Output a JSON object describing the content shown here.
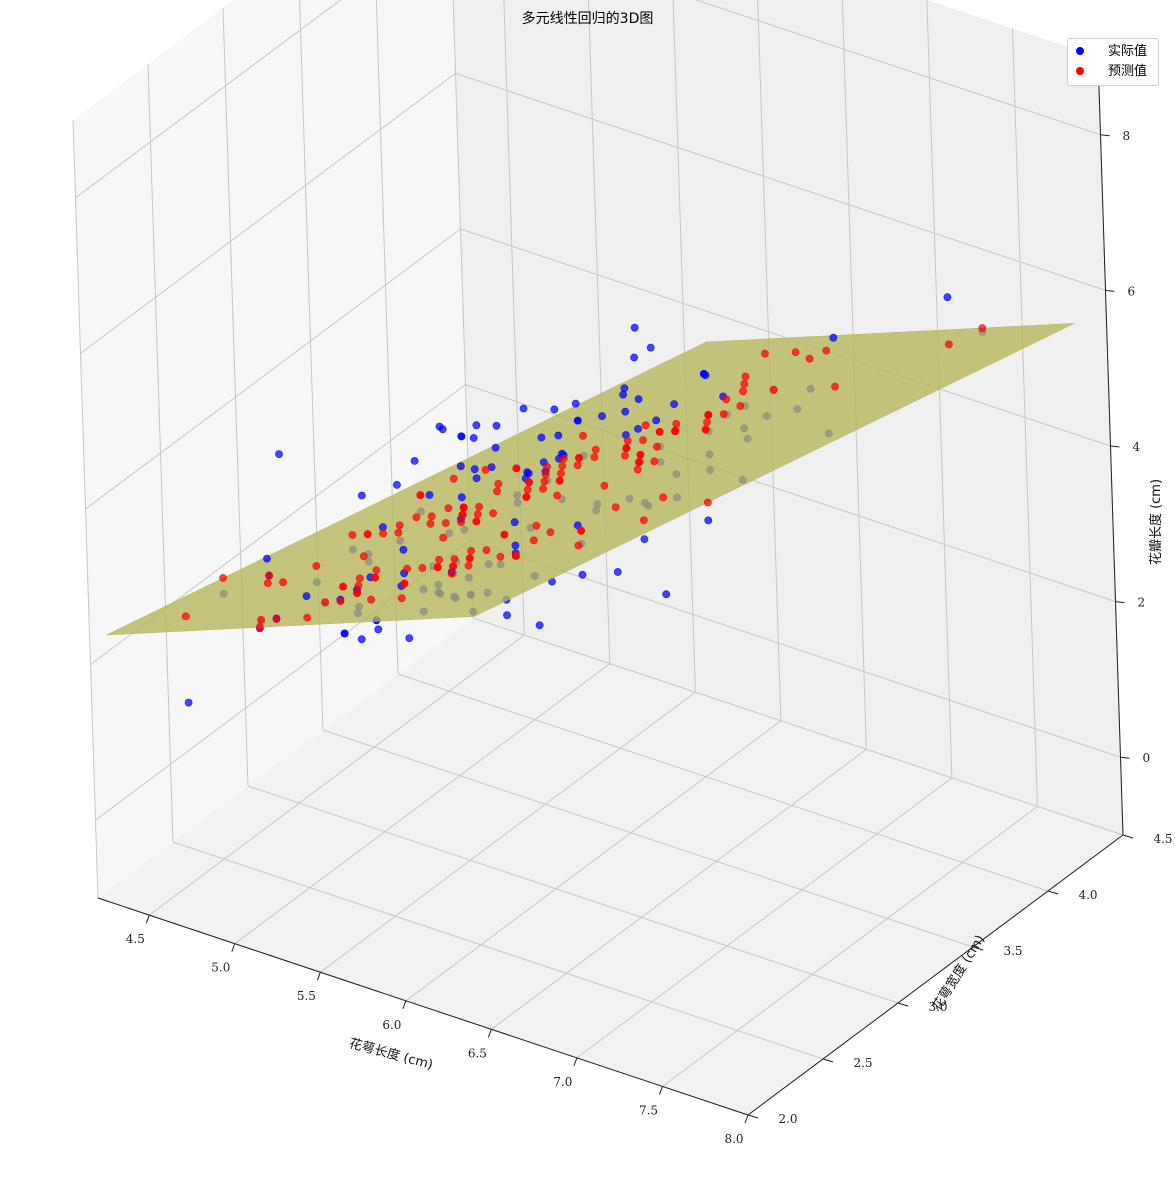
{
  "chart_data": {
    "type": "scatter",
    "subtype": "3d-scatter-with-regression-plane",
    "title": "多元线性回归的3D图",
    "xlabel": "花萼长度 (cm)",
    "ylabel": "花萼宽度 (cm)",
    "zlabel": "花瓣长度 (cm)",
    "xlim": [
      4.2,
      8.0
    ],
    "ylim": [
      2.0,
      4.5
    ],
    "zlim": [
      -1.0,
      9.0
    ],
    "xticks": [
      "4.5",
      "5.0",
      "5.5",
      "6.0",
      "6.5",
      "7.0",
      "7.5",
      "8.0"
    ],
    "yticks": [
      "2.0",
      "2.5",
      "3.0",
      "3.5",
      "4.0",
      "4.5"
    ],
    "zticks": [
      "0",
      "2",
      "4",
      "6",
      "8"
    ],
    "grid": true,
    "legend_position": "top-right",
    "plane": {
      "intercept": -2.52,
      "coef_x": 1.78,
      "coef_y": -1.34,
      "color": "#b5b55a"
    },
    "series": [
      {
        "name": "实际值",
        "color": "#0000ff",
        "x": [
          5.1,
          4.9,
          4.7,
          4.6,
          5.0,
          5.4,
          4.6,
          5.0,
          4.4,
          4.9,
          5.4,
          4.8,
          4.8,
          4.3,
          5.8,
          5.7,
          5.4,
          5.1,
          5.7,
          5.1,
          5.4,
          5.1,
          4.6,
          5.1,
          4.8,
          5.0,
          5.0,
          5.2,
          5.2,
          4.7,
          4.8,
          5.4,
          5.2,
          5.5,
          4.9,
          5.0,
          5.5,
          4.9,
          4.4,
          5.1,
          5.0,
          4.5,
          4.4,
          5.0,
          5.1,
          4.8,
          5.1,
          4.6,
          5.3,
          5.0,
          7.0,
          6.4,
          6.9,
          5.5,
          6.5,
          5.7,
          6.3,
          4.9,
          6.6,
          5.2,
          5.0,
          5.9,
          6.0,
          6.1,
          5.6,
          6.7,
          5.6,
          5.8,
          6.2,
          5.6,
          5.9,
          6.1,
          6.3,
          6.1,
          6.4,
          6.6,
          6.8,
          6.7,
          6.0,
          5.7,
          5.5,
          5.5,
          5.8,
          6.0,
          5.4,
          6.0,
          6.7,
          6.3,
          5.6,
          5.5,
          5.5,
          6.1,
          5.8,
          5.0,
          5.6,
          5.7,
          5.7,
          6.2,
          5.1,
          5.7,
          6.3,
          5.8,
          7.1,
          6.3,
          6.5,
          7.6,
          4.9,
          7.3,
          6.7,
          7.2,
          6.5,
          6.4,
          6.8,
          5.7,
          5.8,
          6.4,
          6.5,
          7.7,
          7.7,
          6.0,
          6.9,
          5.6,
          7.7,
          6.3,
          6.7,
          7.2,
          6.2,
          6.1,
          6.4,
          7.2,
          7.4,
          7.9,
          6.4,
          6.3,
          6.1,
          7.7,
          6.3,
          6.4,
          6.0,
          6.9,
          6.7,
          6.9,
          5.8,
          6.8,
          6.7,
          6.7,
          6.3,
          6.5,
          6.2,
          5.9
        ],
        "y": [
          3.5,
          3.0,
          3.2,
          3.1,
          3.6,
          3.9,
          3.4,
          3.4,
          2.9,
          3.1,
          3.7,
          3.4,
          3.0,
          3.0,
          4.0,
          4.4,
          3.9,
          3.5,
          3.8,
          3.8,
          3.4,
          3.7,
          3.6,
          3.3,
          3.4,
          3.0,
          3.4,
          3.5,
          3.4,
          3.2,
          3.1,
          3.4,
          4.1,
          4.2,
          3.1,
          3.2,
          3.5,
          3.6,
          3.0,
          3.4,
          3.5,
          2.3,
          3.2,
          3.5,
          3.8,
          3.0,
          3.8,
          3.2,
          3.7,
          3.3,
          3.2,
          3.2,
          3.1,
          2.3,
          2.8,
          2.8,
          3.3,
          2.4,
          2.9,
          2.7,
          2.0,
          3.0,
          2.2,
          2.9,
          2.9,
          3.1,
          3.0,
          2.7,
          2.2,
          2.5,
          3.2,
          2.8,
          2.5,
          2.8,
          2.9,
          3.0,
          2.8,
          3.0,
          2.9,
          2.6,
          2.4,
          2.4,
          2.7,
          2.7,
          3.0,
          3.4,
          3.1,
          2.3,
          3.0,
          2.5,
          2.6,
          3.0,
          2.6,
          2.3,
          2.7,
          3.0,
          2.9,
          2.9,
          2.5,
          2.8,
          3.3,
          2.7,
          3.0,
          2.9,
          3.0,
          3.0,
          2.5,
          2.9,
          2.5,
          3.6,
          3.2,
          2.7,
          3.0,
          2.5,
          2.8,
          3.2,
          3.0,
          3.8,
          2.6,
          2.2,
          3.2,
          2.8,
          2.8,
          2.7,
          3.3,
          3.2,
          2.8,
          3.0,
          2.8,
          3.0,
          2.8,
          3.8,
          2.8,
          2.8,
          2.6,
          3.0,
          3.4,
          3.1,
          3.0,
          3.1,
          3.1,
          3.1,
          2.7,
          3.2,
          3.3,
          3.0,
          2.5,
          3.0,
          3.4,
          3.0
        ],
        "z": [
          1.4,
          1.4,
          1.3,
          1.5,
          1.4,
          1.7,
          1.4,
          1.5,
          1.4,
          1.5,
          1.5,
          1.6,
          1.4,
          1.1,
          1.2,
          1.5,
          1.3,
          1.4,
          1.7,
          1.5,
          1.7,
          1.5,
          1.0,
          1.7,
          1.9,
          1.6,
          1.6,
          1.5,
          1.4,
          1.6,
          1.6,
          1.5,
          1.5,
          1.4,
          1.5,
          1.2,
          1.3,
          1.4,
          1.3,
          1.5,
          1.3,
          1.3,
          1.3,
          1.6,
          1.9,
          1.4,
          1.6,
          1.4,
          1.5,
          1.4,
          4.7,
          4.5,
          4.9,
          4.0,
          4.6,
          4.5,
          4.7,
          3.3,
          4.6,
          3.9,
          3.5,
          4.2,
          4.0,
          4.7,
          3.6,
          4.4,
          4.5,
          4.1,
          4.5,
          3.9,
          4.8,
          4.0,
          4.9,
          4.7,
          4.3,
          4.4,
          4.8,
          5.0,
          4.5,
          3.5,
          3.8,
          3.7,
          3.9,
          5.1,
          4.5,
          4.5,
          4.7,
          4.4,
          4.1,
          4.0,
          4.4,
          4.6,
          4.0,
          3.3,
          4.2,
          4.2,
          4.2,
          4.3,
          3.0,
          4.1,
          6.0,
          5.1,
          5.9,
          5.6,
          5.8,
          6.6,
          4.5,
          6.3,
          5.8,
          6.1,
          5.1,
          5.3,
          5.5,
          5.0,
          5.1,
          5.3,
          5.5,
          6.7,
          6.9,
          5.0,
          5.7,
          4.9,
          6.7,
          4.9,
          5.7,
          6.0,
          4.8,
          4.9,
          5.6,
          5.8,
          6.1,
          6.4,
          5.6,
          5.1,
          5.6,
          6.1,
          5.6,
          5.5,
          4.8,
          5.4,
          5.6,
          5.1,
          5.1,
          5.9,
          5.7,
          5.2,
          5.0,
          5.2,
          5.4,
          5.1
        ]
      },
      {
        "name": "预测值",
        "color": "#ff0000",
        "x": [
          5.1,
          4.9,
          4.7,
          4.6,
          5.0,
          5.4,
          4.6,
          5.0,
          4.4,
          4.9,
          5.4,
          4.8,
          4.8,
          4.3,
          5.8,
          5.7,
          5.4,
          5.1,
          5.7,
          5.1,
          5.4,
          5.1,
          4.6,
          5.1,
          4.8,
          5.0,
          5.0,
          5.2,
          5.2,
          4.7,
          4.8,
          5.4,
          5.2,
          5.5,
          4.9,
          5.0,
          5.5,
          4.9,
          4.4,
          5.1,
          5.0,
          4.5,
          4.4,
          5.0,
          5.1,
          4.8,
          5.1,
          4.6,
          5.3,
          5.0,
          7.0,
          6.4,
          6.9,
          5.5,
          6.5,
          5.7,
          6.3,
          4.9,
          6.6,
          5.2,
          5.0,
          5.9,
          6.0,
          6.1,
          5.6,
          6.7,
          5.6,
          5.8,
          6.2,
          5.6,
          5.9,
          6.1,
          6.3,
          6.1,
          6.4,
          6.6,
          6.8,
          6.7,
          6.0,
          5.7,
          5.5,
          5.5,
          5.8,
          6.0,
          5.4,
          6.0,
          6.7,
          6.3,
          5.6,
          5.5,
          5.5,
          6.1,
          5.8,
          5.0,
          5.6,
          5.7,
          5.7,
          6.2,
          5.1,
          5.7,
          6.3,
          5.8,
          7.1,
          6.3,
          6.5,
          7.6,
          4.9,
          7.3,
          6.7,
          7.2,
          6.5,
          6.4,
          6.8,
          5.7,
          5.8,
          6.4,
          6.5,
          7.7,
          7.7,
          6.0,
          6.9,
          5.6,
          7.7,
          6.3,
          6.7,
          7.2,
          6.2,
          6.1,
          6.4,
          7.2,
          7.4,
          7.9,
          6.4,
          6.3,
          6.1,
          7.7,
          6.3,
          6.4,
          6.0,
          6.9,
          6.7,
          6.9,
          5.8,
          6.8,
          6.7,
          6.7,
          6.3,
          6.5,
          6.2,
          5.9
        ],
        "y": [
          3.5,
          3.0,
          3.2,
          3.1,
          3.6,
          3.9,
          3.4,
          3.4,
          2.9,
          3.1,
          3.7,
          3.4,
          3.0,
          3.0,
          4.0,
          4.4,
          3.9,
          3.5,
          3.8,
          3.8,
          3.4,
          3.7,
          3.6,
          3.3,
          3.4,
          3.0,
          3.4,
          3.5,
          3.4,
          3.2,
          3.1,
          3.4,
          4.1,
          4.2,
          3.1,
          3.2,
          3.5,
          3.6,
          3.0,
          3.4,
          3.5,
          2.3,
          3.2,
          3.5,
          3.8,
          3.0,
          3.8,
          3.2,
          3.7,
          3.3,
          3.2,
          3.2,
          3.1,
          2.3,
          2.8,
          2.8,
          3.3,
          2.4,
          2.9,
          2.7,
          2.0,
          3.0,
          2.2,
          2.9,
          2.9,
          3.1,
          3.0,
          2.7,
          2.2,
          2.5,
          3.2,
          2.8,
          2.5,
          2.8,
          2.9,
          3.0,
          2.8,
          3.0,
          2.9,
          2.6,
          2.4,
          2.4,
          2.7,
          2.7,
          3.0,
          3.4,
          3.1,
          2.3,
          3.0,
          2.5,
          2.6,
          3.0,
          2.6,
          2.3,
          2.7,
          3.0,
          2.9,
          2.9,
          2.5,
          2.8,
          3.3,
          2.7,
          3.0,
          2.9,
          3.0,
          3.0,
          2.5,
          2.9,
          2.5,
          3.6,
          3.2,
          2.7,
          3.0,
          2.5,
          2.8,
          3.2,
          3.0,
          3.8,
          2.6,
          2.2,
          3.2,
          2.8,
          2.8,
          2.7,
          3.3,
          3.2,
          2.8,
          3.0,
          2.8,
          3.0,
          2.8,
          3.8,
          2.8,
          2.8,
          2.6,
          3.0,
          3.4,
          3.1,
          3.0,
          3.1,
          3.1,
          3.1,
          2.7,
          3.2,
          3.3,
          3.0,
          2.5,
          3.0,
          3.4,
          3.0
        ]
      }
    ]
  }
}
